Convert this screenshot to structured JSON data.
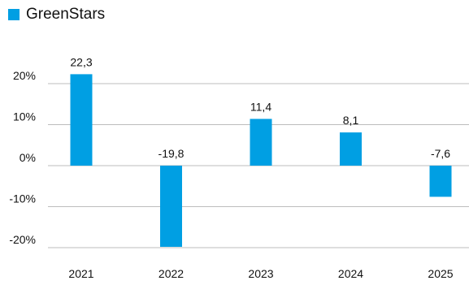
{
  "legend": {
    "series_name": "GreenStars"
  },
  "colors": {
    "bar": "#009FE3",
    "grid": "#BDBDBD",
    "text": "#111111"
  },
  "chart_data": {
    "type": "bar",
    "categories": [
      "2021",
      "2022",
      "2023",
      "2024",
      "2025"
    ],
    "series": [
      {
        "name": "GreenStars",
        "values": [
          22.3,
          -19.8,
          11.4,
          8.1,
          -7.6
        ]
      }
    ],
    "data_labels": [
      "22,3",
      "-19,8",
      "11,4",
      "8,1",
      "-7,6"
    ],
    "yticks": [
      20,
      10,
      0,
      -10,
      -20
    ],
    "ytick_labels": [
      "20%",
      "10%",
      "0%",
      "-10%",
      "-20%"
    ],
    "ylim": [
      -20,
      20
    ],
    "grid": true,
    "legend_position": "top-left",
    "title": "",
    "xlabel": "",
    "ylabel": ""
  }
}
